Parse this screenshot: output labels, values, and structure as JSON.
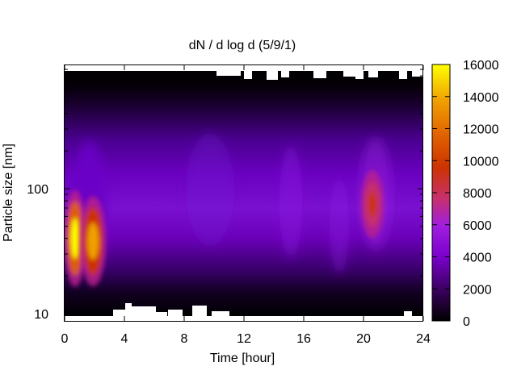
{
  "chart_data": {
    "type": "heatmap",
    "title": "dN / d log d (5/9/1)",
    "xlabel": "Time [hour]",
    "ylabel": "Particle size [nm]",
    "xlim": [
      0,
      24
    ],
    "x_ticks": [
      0,
      4,
      8,
      12,
      16,
      20,
      24
    ],
    "y_scale": "log",
    "y_ticks": [
      10,
      100
    ],
    "colorbar": {
      "range": [
        0,
        16000
      ],
      "ticks": [
        0,
        2000,
        4000,
        6000,
        8000,
        10000,
        12000,
        14000,
        16000
      ],
      "palette": [
        "#000000",
        "#3a005e",
        "#7a00cc",
        "#a01ee0",
        "#c8306a",
        "#cc3300",
        "#e06000",
        "#f0a000",
        "#ffff00"
      ]
    },
    "blobs": [
      {
        "t": 0.7,
        "d": 40,
        "value": 14500
      },
      {
        "t": 1.9,
        "d": 38,
        "value": 12000
      },
      {
        "t": 20.6,
        "d": 75,
        "value": 8000
      }
    ]
  }
}
